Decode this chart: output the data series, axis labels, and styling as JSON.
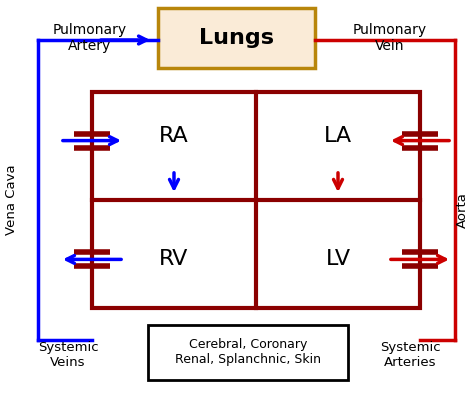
{
  "bg_color": "#ffffff",
  "dark_red": "#8B0000",
  "blue": "#0000FF",
  "red": "#CC0000",
  "gold_edge": "#B8860B",
  "lung_fill": "#FAEBD7",
  "fig_width": 4.74,
  "fig_height": 3.96,
  "labels": {
    "lungs": "Lungs",
    "RA": "RA",
    "LA": "LA",
    "RV": "RV",
    "LV": "LV",
    "pulm_artery": "Pulmonary\nArtery",
    "pulm_vein": "Pulmonary\nVein",
    "vena_cava": "Vena Cava",
    "aorta": "Aorta",
    "systemic_veins": "Systemic\nVeins",
    "systemic_arteries": "Systemic\nArteries",
    "systemic_box": "Cerebral, Coronary\nRenal, Splanchnic, Skin"
  }
}
